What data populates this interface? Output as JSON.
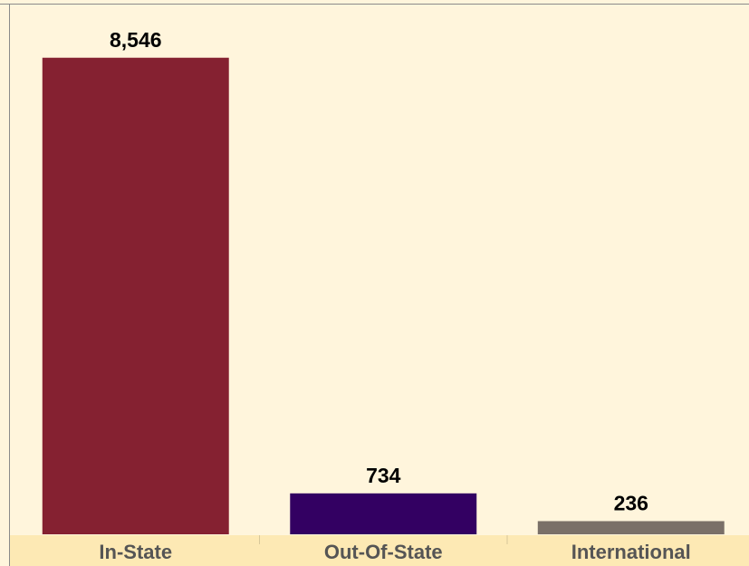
{
  "chart_data": {
    "type": "bar",
    "categories": [
      "In-State",
      "Out-Of-State",
      "International"
    ],
    "values": [
      8546,
      734,
      236
    ],
    "value_labels": [
      "8,546",
      "734",
      "236"
    ],
    "colors": [
      "#852131",
      "#330062",
      "#7a7068"
    ],
    "ylim": [
      0,
      9500
    ]
  }
}
